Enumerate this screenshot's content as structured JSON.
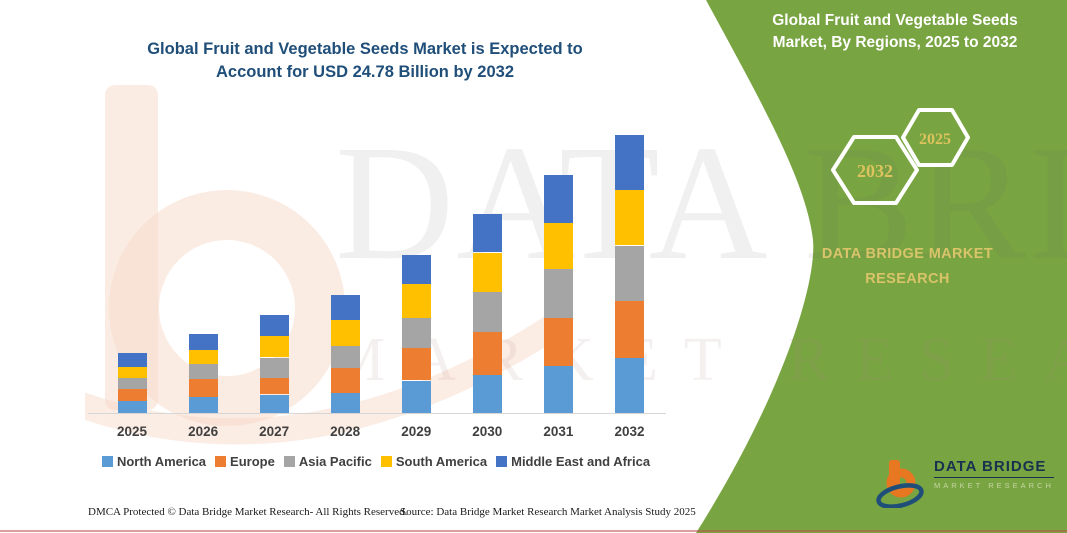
{
  "header": {
    "title_line1": "Global Fruit and Vegetable Seeds Market is Expected to",
    "title_line2": "Account for USD 24.78 Billion by 2032"
  },
  "right_panel": {
    "bg_color": "#78A441",
    "title_line1": "Global Fruit and Vegetable Seeds",
    "title_line2": "Market, By Regions, 2025 to 2032",
    "hexagon_big_label": "2032",
    "hexagon_small_label": "2025",
    "hexagon_text_color": "#DCC35E",
    "brand_line1": "DATA BRIDGE MARKET",
    "brand_line2": "RESEARCH"
  },
  "watermark": {
    "line1": "DATA BRIDGE",
    "line2": "MARKET RESEARCH"
  },
  "chart_data": {
    "type": "bar",
    "stacked": true,
    "title": "Global Fruit and Vegetable Seeds Market, By Regions, 2025 to 2032",
    "unit": "USD Billion",
    "categories": [
      "2025",
      "2026",
      "2027",
      "2028",
      "2029",
      "2030",
      "2031",
      "2032"
    ],
    "series": [
      {
        "name": "North America",
        "color": "#5B9BD5",
        "values": [
          1.05,
          1.4,
          1.65,
          1.8,
          2.9,
          3.35,
          4.15,
          4.9
        ]
      },
      {
        "name": "Europe",
        "color": "#ED7D31",
        "values": [
          1.05,
          1.6,
          1.45,
          2.2,
          2.9,
          3.9,
          4.35,
          5.08
        ]
      },
      {
        "name": "Asia Pacific",
        "color": "#A5A5A5",
        "values": [
          1.0,
          1.4,
          1.85,
          2.0,
          2.7,
          3.55,
          4.3,
          4.95
        ]
      },
      {
        "name": "South America",
        "color": "#FFC000",
        "values": [
          1.05,
          1.25,
          1.9,
          2.3,
          3.0,
          3.5,
          4.15,
          4.95
        ]
      },
      {
        "name": "Middle East and Africa",
        "color": "#4472C4",
        "values": [
          1.2,
          1.4,
          1.85,
          2.2,
          2.6,
          3.4,
          4.3,
          4.9
        ]
      }
    ],
    "totals": [
      5.35,
      7.05,
      8.7,
      10.5,
      14.1,
      17.7,
      21.25,
      24.78
    ],
    "ylim": [
      0,
      26
    ],
    "grid": false,
    "legend_position": "bottom",
    "x_axis_labels_shown": true,
    "y_axis_shown": false
  },
  "logo": {
    "name": "DATA BRIDGE",
    "subtitle": "MARKET RESEARCH"
  },
  "footer": {
    "left": "DMCA Protected © Data Bridge Market Research-  All Rights Reserved.",
    "right": "Source: Data Bridge Market Research  Market Analysis Study 2025"
  }
}
